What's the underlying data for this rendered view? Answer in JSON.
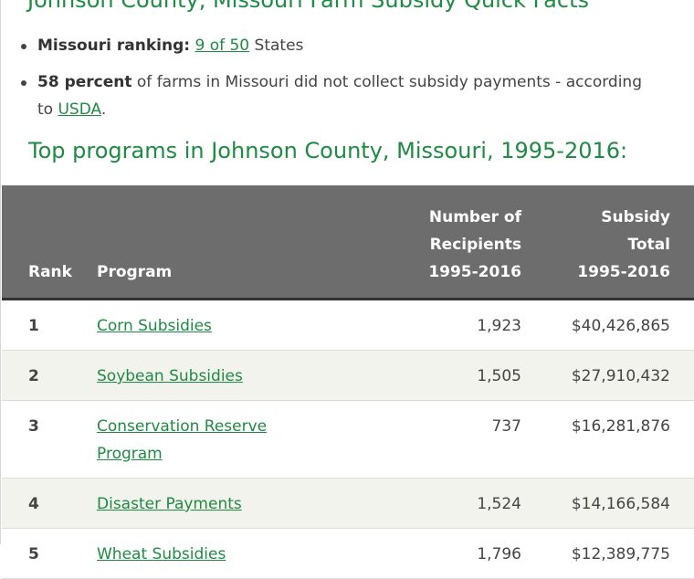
{
  "quick_facts_title": "Johnson County, Missouri Farm Subsidy Quick Facts",
  "facts": {
    "ranking_label": "Missouri ranking:",
    "ranking_link": "9 of 50",
    "ranking_suffix": "States",
    "percent_bold": "58 percent",
    "percent_text": "of farms in Missouri did not collect subsidy payments - according to",
    "percent_link": "USDA",
    "percent_end": "."
  },
  "programs_title": "Top programs in Johnson County, Missouri, 1995-2016:",
  "table": {
    "headers": {
      "rank": "Rank",
      "program": "Program",
      "recipients": [
        "Number of",
        "Recipients",
        "1995-2016"
      ],
      "total": [
        "Subsidy",
        "Total",
        "1995-2016"
      ]
    },
    "rows": [
      {
        "rank": "1",
        "program": "Corn Subsidies",
        "recipients": "1,923",
        "total": "$40,426,865"
      },
      {
        "rank": "2",
        "program": "Soybean Subsidies",
        "recipients": "1,505",
        "total": "$27,910,432"
      },
      {
        "rank": "3",
        "program": "Conservation Reserve Program",
        "recipients": "737",
        "total": "$16,281,876"
      },
      {
        "rank": "4",
        "program": "Disaster Payments",
        "recipients": "1,524",
        "total": "$14,166,584"
      },
      {
        "rank": "5",
        "program": "Wheat Subsidies",
        "recipients": "1,796",
        "total": "$12,389,775"
      }
    ]
  }
}
